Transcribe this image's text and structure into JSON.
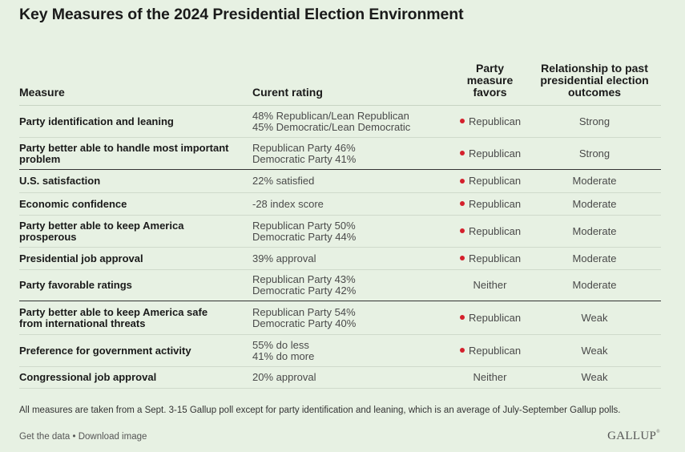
{
  "title": "Key Measures of the 2024 Presidential Election Environment",
  "columns": {
    "measure": "Measure",
    "rating": "Curent rating",
    "favors": "Party measure favors",
    "relationship": "Relationship to past presidential election outcomes"
  },
  "rows": [
    {
      "measure": "Party identification and leaning",
      "rating1": "48% Republican/Lean Republican",
      "rating2": "45% Democratic/Lean Democratic",
      "favors": "Republican",
      "relationship": "Strong"
    },
    {
      "measure": "Party better able to handle most important problem",
      "rating1": "Republican Party 46%",
      "rating2": "Democratic Party 41%",
      "favors": "Republican",
      "relationship": "Strong"
    },
    {
      "measure": "U.S. satisfaction",
      "rating1": "22% satisfied",
      "rating2": "",
      "favors": "Republican",
      "relationship": "Moderate"
    },
    {
      "measure": "Economic confidence",
      "rating1": "-28 index score",
      "rating2": "",
      "favors": "Republican",
      "relationship": "Moderate"
    },
    {
      "measure": "Party better able to keep America prosperous",
      "rating1": "Republican Party 50%",
      "rating2": "Democratic Party 44%",
      "favors": "Republican",
      "relationship": "Moderate"
    },
    {
      "measure": "Presidential job approval",
      "rating1": "39% approval",
      "rating2": "",
      "favors": "Republican",
      "relationship": "Moderate"
    },
    {
      "measure": "Party favorable ratings",
      "rating1": "Republican Party 43%",
      "rating2": "Democratic Party 42%",
      "favors": "Neither",
      "relationship": "Moderate"
    },
    {
      "measure": "Party better able to keep America safe from international threats",
      "rating1": "Republican Party 54%",
      "rating2": "Democratic Party 40%",
      "favors": "Republican",
      "relationship": "Weak"
    },
    {
      "measure": "Preference for government activity",
      "rating1": "55% do less",
      "rating2": "41% do more",
      "favors": "Republican",
      "relationship": "Weak"
    },
    {
      "measure": "Congressional job approval",
      "rating1": "20% approval",
      "rating2": "",
      "favors": "Neither",
      "relationship": "Weak"
    }
  ],
  "footnote": "All measures are taken from a Sept. 3-15 Gallup poll except for party identification and leaning, which is an average of July-September Gallup polls.",
  "links": {
    "get_data": "Get the data",
    "separator": " • ",
    "download": "Download image"
  },
  "logo": "GALLUP",
  "colors": {
    "background": "#e7f1e3",
    "republican_dot": "#d4202c"
  }
}
